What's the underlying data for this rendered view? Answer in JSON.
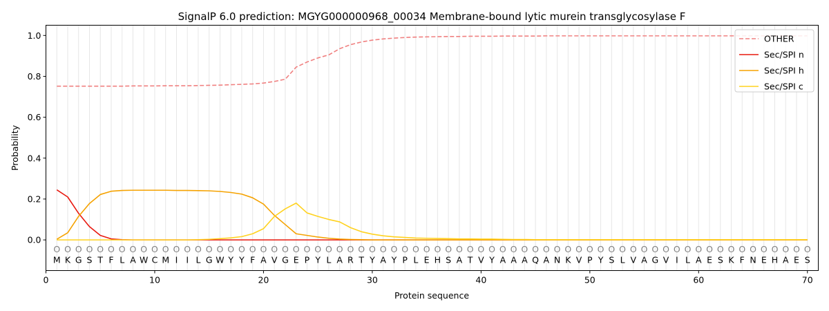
{
  "chart_data": {
    "type": "line",
    "title": "SignalP 6.0 prediction: MGYG000000968_00034 Membrane-bound lytic murein transglycosylase F",
    "xlabel": "Protein sequence",
    "ylabel": "Probability",
    "xlim": [
      0,
      71
    ],
    "ylim": [
      -0.15,
      1.05
    ],
    "xticks": [
      0,
      10,
      20,
      30,
      40,
      50,
      60,
      70
    ],
    "yticks": [
      0.0,
      0.2,
      0.4,
      0.6,
      0.8,
      1.0
    ],
    "xtick_labels": [
      "0",
      "10",
      "20",
      "30",
      "40",
      "50",
      "60",
      "70"
    ],
    "ytick_labels": [
      "0.0",
      "0.2",
      "0.4",
      "0.6",
      "0.8",
      "1.0"
    ],
    "grid": "vertical lines at each residue",
    "legend_position": "top-right",
    "sequence": [
      "M",
      "K",
      "G",
      "S",
      "T",
      "F",
      "L",
      "A",
      "W",
      "C",
      "M",
      "I",
      "I",
      "L",
      "G",
      "W",
      "Y",
      "Y",
      "F",
      "A",
      "V",
      "G",
      "E",
      "P",
      "Y",
      "L",
      "A",
      "R",
      "T",
      "Y",
      "A",
      "Y",
      "P",
      "L",
      "E",
      "H",
      "S",
      "A",
      "T",
      "V",
      "Y",
      "A",
      "A",
      "A",
      "Q",
      "A",
      "N",
      "K",
      "V",
      "P",
      "Y",
      "S",
      "L",
      "V",
      "A",
      "G",
      "V",
      "I",
      "L",
      "A",
      "E",
      "S",
      "K",
      "F",
      "N",
      "E",
      "H",
      "A",
      "E",
      "S"
    ],
    "region_labels": [
      "O",
      "O",
      "O",
      "O",
      "O",
      "O",
      "O",
      "O",
      "O",
      "O",
      "O",
      "O",
      "O",
      "O",
      "O",
      "O",
      "O",
      "O",
      "O",
      "O",
      "O",
      "O",
      "O",
      "O",
      "O",
      "O",
      "O",
      "O",
      "O",
      "O",
      "O",
      "O",
      "O",
      "O",
      "O",
      "O",
      "O",
      "O",
      "O",
      "O",
      "O",
      "O",
      "O",
      "O",
      "O",
      "O",
      "O",
      "O",
      "O",
      "O",
      "O",
      "O",
      "O",
      "O",
      "O",
      "O",
      "O",
      "O",
      "O",
      "O",
      "O",
      "O",
      "O",
      "O",
      "O",
      "O",
      "O",
      "O",
      "O",
      "O"
    ],
    "series": [
      {
        "name": "OTHER",
        "color": "#f08080",
        "dashed": true,
        "values": [
          0.752,
          0.752,
          0.752,
          0.752,
          0.752,
          0.752,
          0.752,
          0.753,
          0.753,
          0.753,
          0.754,
          0.754,
          0.754,
          0.755,
          0.756,
          0.757,
          0.759,
          0.761,
          0.763,
          0.767,
          0.775,
          0.786,
          0.845,
          0.87,
          0.89,
          0.905,
          0.935,
          0.955,
          0.968,
          0.977,
          0.983,
          0.987,
          0.99,
          0.992,
          0.993,
          0.994,
          0.995,
          0.995,
          0.996,
          0.996,
          0.996,
          0.997,
          0.997,
          0.997,
          0.997,
          0.998,
          0.998,
          0.998,
          0.998,
          0.998,
          0.998,
          0.998,
          0.998,
          0.998,
          0.998,
          0.998,
          0.998,
          0.998,
          0.998,
          0.998,
          0.998,
          0.998,
          0.998,
          0.998,
          0.998,
          0.998,
          0.998,
          0.998,
          0.998,
          0.998
        ]
      },
      {
        "name": "Sec/SPI n",
        "color": "#e8190f",
        "dashed": false,
        "values": [
          0.245,
          0.21,
          0.13,
          0.065,
          0.022,
          0.005,
          0.001,
          0,
          0,
          0,
          0,
          0,
          0,
          0,
          0,
          0,
          0,
          0,
          0,
          0,
          0,
          0,
          0,
          0,
          0,
          0,
          0,
          0,
          0,
          0,
          0,
          0,
          0,
          0,
          0,
          0,
          0,
          0,
          0,
          0,
          0,
          0,
          0,
          0,
          0,
          0,
          0,
          0,
          0,
          0,
          0,
          0,
          0,
          0,
          0,
          0,
          0,
          0,
          0,
          0,
          0,
          0,
          0,
          0,
          0,
          0,
          0,
          0,
          0,
          0
        ]
      },
      {
        "name": "Sec/SPI h",
        "color": "#f5a200",
        "dashed": false,
        "values": [
          0.003,
          0.035,
          0.115,
          0.178,
          0.222,
          0.238,
          0.242,
          0.243,
          0.243,
          0.243,
          0.243,
          0.242,
          0.242,
          0.241,
          0.24,
          0.237,
          0.232,
          0.224,
          0.206,
          0.175,
          0.12,
          0.075,
          0.03,
          0.022,
          0.014,
          0.008,
          0.004,
          0.002,
          0.001,
          0,
          0,
          0,
          0,
          0,
          0,
          0,
          0,
          0,
          0,
          0,
          0,
          0,
          0,
          0,
          0,
          0,
          0,
          0,
          0,
          0,
          0,
          0,
          0,
          0,
          0,
          0,
          0,
          0,
          0,
          0,
          0,
          0,
          0,
          0,
          0,
          0,
          0,
          0,
          0,
          0
        ]
      },
      {
        "name": "Sec/SPI c",
        "color": "#ffd21f",
        "dashed": false,
        "values": [
          0,
          0,
          0,
          0,
          0,
          0,
          0,
          0,
          0,
          0,
          0,
          0,
          0,
          0.001,
          0.003,
          0.006,
          0.01,
          0.016,
          0.03,
          0.055,
          0.115,
          0.152,
          0.18,
          0.132,
          0.115,
          0.1,
          0.088,
          0.06,
          0.04,
          0.028,
          0.02,
          0.015,
          0.012,
          0.009,
          0.008,
          0.007,
          0.006,
          0.005,
          0.005,
          0.004,
          0.004,
          0.003,
          0.002,
          0.002,
          0.001,
          0.001,
          0.001,
          0.001,
          0.001,
          0.001,
          0.001,
          0.001,
          0.001,
          0.001,
          0.001,
          0.001,
          0.001,
          0.001,
          0.001,
          0.001,
          0.001,
          0.001,
          0.001,
          0.001,
          0.001,
          0.001,
          0.001,
          0.001,
          0.001,
          0.001
        ]
      }
    ]
  }
}
